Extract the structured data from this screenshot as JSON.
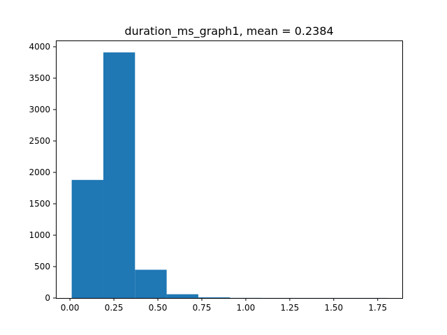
{
  "chart_data": {
    "type": "histogram",
    "title": "duration_ms_graph1, mean = 0.2384",
    "xlabel": "",
    "ylabel": "",
    "bar_color": "#1f77b4",
    "xlim": [
      -0.08,
      1.89
    ],
    "ylim": [
      0,
      4100
    ],
    "xticks": [
      0.0,
      0.25,
      0.5,
      0.75,
      1.0,
      1.25,
      1.5,
      1.75
    ],
    "xtick_labels": [
      "0.00",
      "0.25",
      "0.50",
      "0.75",
      "1.00",
      "1.25",
      "1.50",
      "1.75"
    ],
    "yticks": [
      0,
      500,
      1000,
      1500,
      2000,
      2500,
      3000,
      3500,
      4000
    ],
    "ytick_labels": [
      "0",
      "500",
      "1000",
      "1500",
      "2000",
      "2500",
      "3000",
      "3500",
      "4000"
    ],
    "bins": [
      {
        "x0": 0.01,
        "x1": 0.19,
        "count": 1880
      },
      {
        "x0": 0.19,
        "x1": 0.37,
        "count": 3910
      },
      {
        "x0": 0.37,
        "x1": 0.55,
        "count": 450
      },
      {
        "x0": 0.55,
        "x1": 0.73,
        "count": 60
      },
      {
        "x0": 0.73,
        "x1": 0.91,
        "count": 10
      },
      {
        "x0": 0.91,
        "x1": 1.09,
        "count": 2
      },
      {
        "x0": 1.09,
        "x1": 1.27,
        "count": 1
      },
      {
        "x0": 1.27,
        "x1": 1.45,
        "count": 1
      },
      {
        "x0": 1.45,
        "x1": 1.63,
        "count": 1
      },
      {
        "x0": 1.63,
        "x1": 1.81,
        "count": 1
      }
    ]
  }
}
